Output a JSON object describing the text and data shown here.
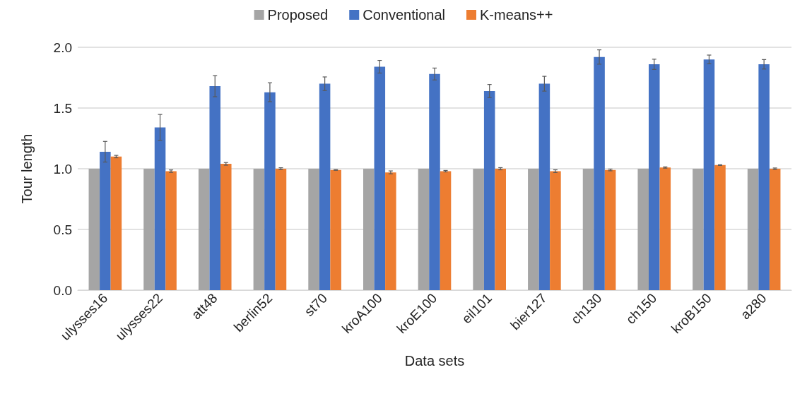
{
  "chart_data": {
    "type": "bar",
    "xlabel": "Data sets",
    "ylabel": "Tour length",
    "categories": [
      "ulysses16",
      "ulysses22",
      "att48",
      "berlin52",
      "st70",
      "kroA100",
      "kroE100",
      "eil101",
      "bier127",
      "ch130",
      "ch150",
      "kroB150",
      "a280"
    ],
    "series": [
      {
        "name": "Proposed",
        "color": "#a5a5a5",
        "values": [
          1.0,
          1.0,
          1.0,
          1.0,
          1.0,
          1.0,
          1.0,
          1.0,
          1.0,
          1.0,
          1.0,
          1.0,
          1.0
        ]
      },
      {
        "name": "Conventional",
        "color": "#4472c4",
        "values": [
          1.14,
          1.34,
          1.68,
          1.63,
          1.7,
          1.84,
          1.78,
          1.64,
          1.7,
          1.92,
          1.86,
          1.9,
          1.86
        ],
        "errors": [
          0.085,
          0.107,
          0.087,
          0.078,
          0.056,
          0.052,
          0.049,
          0.054,
          0.061,
          0.059,
          0.042,
          0.036,
          0.039
        ]
      },
      {
        "name": "K-means++",
        "color": "#ed7d31",
        "values": [
          1.1,
          0.98,
          1.04,
          1.0,
          0.99,
          0.97,
          0.98,
          1.0,
          0.98,
          0.99,
          1.01,
          1.03,
          1.0
        ],
        "errors": [
          0.01,
          0.01,
          0.011,
          0.008,
          0.003,
          0.012,
          0.006,
          0.009,
          0.011,
          0.007,
          0.005,
          0.003,
          0.006
        ]
      }
    ],
    "ylim": [
      0,
      2.0
    ],
    "yticks": [
      {
        "value": 0,
        "label": "0.0"
      },
      {
        "value": 0.5,
        "label": "0.5"
      },
      {
        "value": 1.0,
        "label": "1.0"
      },
      {
        "value": 1.5,
        "label": "1.5"
      },
      {
        "value": 2.0,
        "label": "2.0"
      }
    ],
    "grid": "y",
    "legend": "top"
  }
}
